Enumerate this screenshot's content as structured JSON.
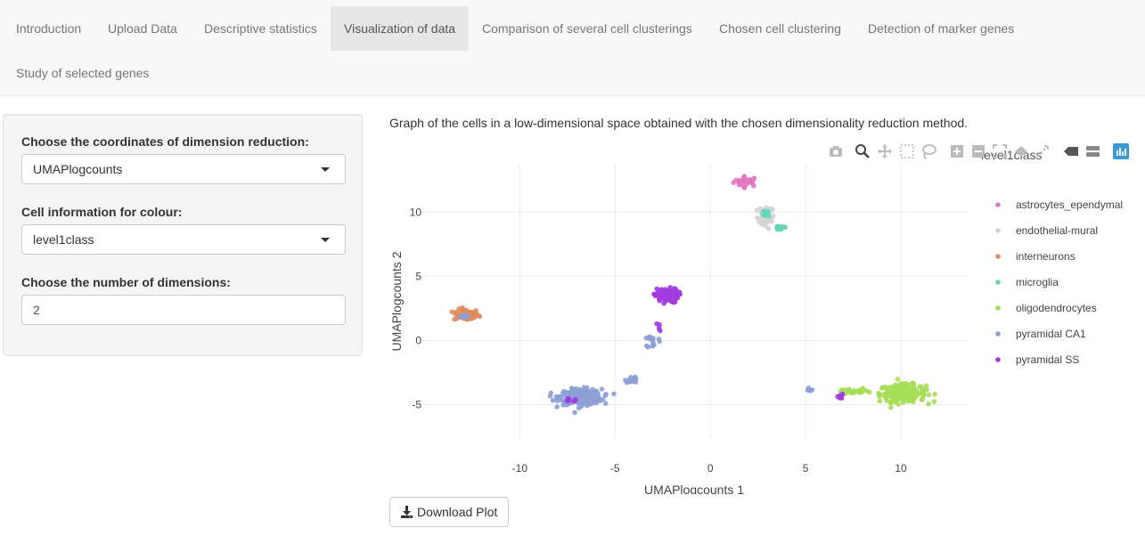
{
  "nav": {
    "tabs": [
      {
        "label": "Introduction"
      },
      {
        "label": "Upload Data"
      },
      {
        "label": "Descriptive statistics"
      },
      {
        "label": "Visualization of data"
      },
      {
        "label": "Comparison of several cell clusterings"
      },
      {
        "label": "Chosen cell clustering"
      },
      {
        "label": "Detection of marker genes"
      },
      {
        "label": "Study of selected genes"
      }
    ],
    "active": "Visualization of data"
  },
  "sidebar": {
    "coords_label": "Choose the coordinates of dimension reduction:",
    "coords_value": "UMAPlogcounts",
    "colour_label": "Cell information for colour:",
    "colour_value": "level1class",
    "dims_label": "Choose the number of dimensions:",
    "dims_value": "2"
  },
  "main": {
    "description": "Graph of the cells in a low-dimensional space obtained with the chosen dimensionality reduction method.",
    "download_label": "Download Plot"
  },
  "modebar_icons": [
    "camera-icon",
    "zoom-icon",
    "pan-icon",
    "box-select-icon",
    "lasso-icon",
    "zoom-in-icon",
    "zoom-out-icon",
    "autoscale-icon",
    "reset-axes-icon",
    "spike-lines-icon",
    "hover-closest-icon",
    "hover-compare-icon",
    "plotly-logo-icon"
  ],
  "colors": {
    "astrocytes_ependymal": "#e377c2",
    "endothelial-mural": "#d3d3d3",
    "interneurons": "#e08d5b",
    "microglia": "#66d6b8",
    "oligodendrocytes": "#a6de58",
    "pyramidal CA1": "#8da0d6",
    "pyramidal SS": "#a23be0",
    "modebar_active": "#3b99d9"
  },
  "chart_data": {
    "type": "scatter",
    "title": "",
    "xlabel": "UMAPlogcounts 1",
    "ylabel": "UMAPlogcounts 2",
    "xlim": [
      -15.3,
      13.6
    ],
    "ylim": [
      -7.6,
      13.7
    ],
    "xticks": [
      -10,
      -5,
      0,
      5,
      10
    ],
    "yticks": [
      -5,
      0,
      5,
      10
    ],
    "grid": true,
    "legend_title": "level1class",
    "legend_position": "right",
    "series": [
      {
        "name": "astrocytes_ependymal",
        "clusters": [
          [
            1.9,
            12.4,
            0.6,
            0.35,
            30
          ]
        ]
      },
      {
        "name": "endothelial-mural",
        "clusters": [
          [
            2.9,
            9.6,
            0.4,
            0.8,
            40
          ]
        ]
      },
      {
        "name": "interneurons",
        "clusters": [
          [
            -12.8,
            2.0,
            0.6,
            0.4,
            70
          ]
        ]
      },
      {
        "name": "microglia",
        "clusters": [
          [
            3.7,
            8.8,
            0.35,
            0.2,
            18
          ],
          [
            3.0,
            10.0,
            0.2,
            0.4,
            8
          ]
        ]
      },
      {
        "name": "oligodendrocytes",
        "clusters": [
          [
            10.1,
            -4.1,
            1.1,
            0.6,
            220
          ],
          [
            7.5,
            -4.0,
            0.8,
            0.2,
            25
          ]
        ]
      },
      {
        "name": "pyramidal CA1",
        "clusters": [
          [
            -6.8,
            -4.4,
            1.0,
            0.55,
            280
          ],
          [
            -4.1,
            -3.0,
            0.3,
            0.3,
            15
          ],
          [
            -3.0,
            -0.1,
            0.25,
            0.5,
            14
          ],
          [
            -12.9,
            2.0,
            0.3,
            0.2,
            6
          ],
          [
            5.2,
            -3.8,
            0.15,
            0.15,
            5
          ]
        ]
      },
      {
        "name": "pyramidal SS",
        "clusters": [
          [
            -2.3,
            3.5,
            0.55,
            0.5,
            110
          ],
          [
            -2.7,
            1.0,
            0.1,
            0.4,
            5
          ],
          [
            6.8,
            -4.4,
            0.3,
            0.2,
            8
          ],
          [
            -7.3,
            -4.7,
            0.3,
            0.3,
            6
          ]
        ]
      }
    ]
  }
}
